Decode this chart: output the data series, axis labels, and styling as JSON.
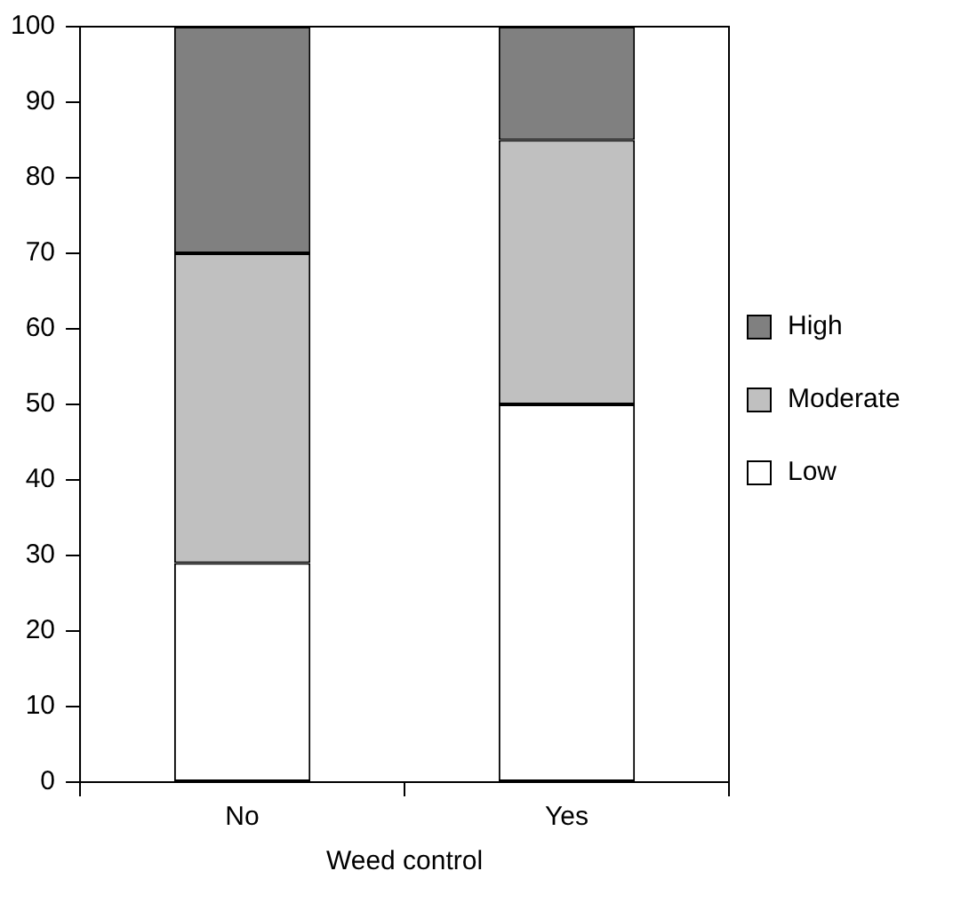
{
  "chart_data": {
    "type": "bar",
    "xlabel": "Weed control",
    "categories": [
      "No",
      "Yes"
    ],
    "stacked": true,
    "series": [
      {
        "name": "Low",
        "color": "#ffffff",
        "values": [
          29,
          50
        ]
      },
      {
        "name": "Moderate",
        "color": "#c0c0c0",
        "values": [
          41,
          35
        ]
      },
      {
        "name": "High",
        "color": "#808080",
        "values": [
          30,
          15
        ]
      }
    ],
    "ylim": [
      0,
      100
    ],
    "yticks": [
      0,
      10,
      20,
      30,
      40,
      50,
      60,
      70,
      80,
      90,
      100
    ],
    "grid": false,
    "legend": "right"
  }
}
